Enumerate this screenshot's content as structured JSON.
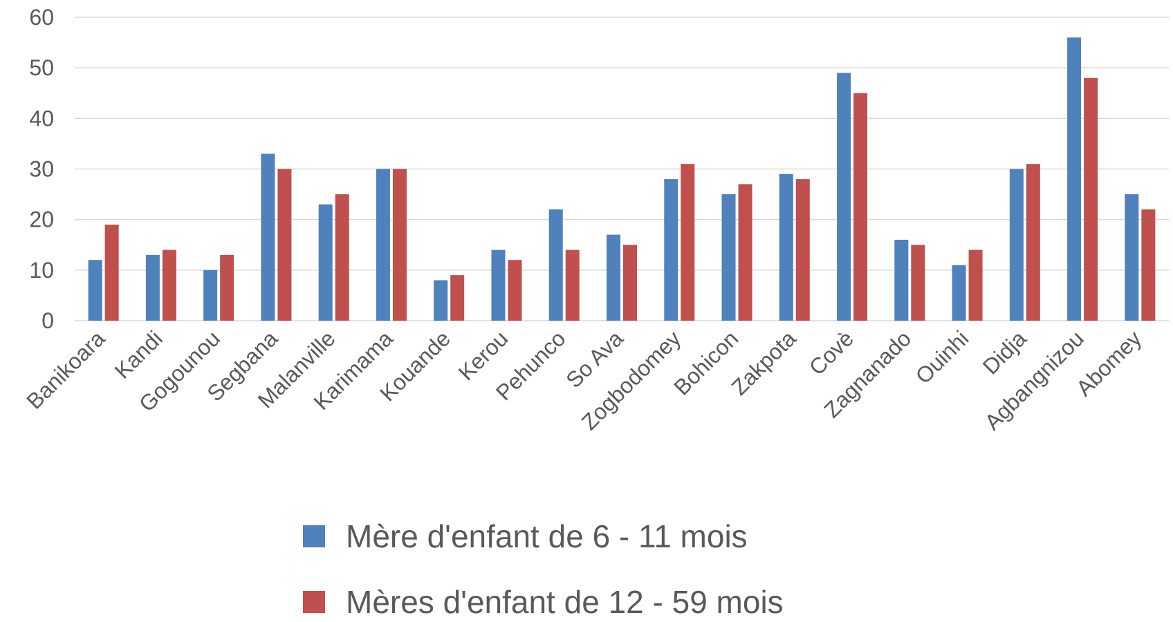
{
  "chart_data": {
    "type": "bar",
    "categories": [
      "Banikoara",
      "Kandi",
      "Gogounou",
      "Segbana",
      "Malanville",
      "Karimama",
      "Kouande",
      "Kerou",
      "Pehunco",
      "So Ava",
      "Zogbodomey",
      "Bohicon",
      "Zakpota",
      "Covè",
      "Zagnanado",
      "Ouinhi",
      "Didja",
      "Agbangnizou",
      "Abomey"
    ],
    "series": [
      {
        "name": "Mère d'enfant de 6 - 11 mois",
        "color": "#4f81bd",
        "values": [
          12,
          13,
          10,
          33,
          23,
          30,
          8,
          14,
          22,
          17,
          28,
          25,
          29,
          49,
          16,
          11,
          30,
          56,
          25
        ]
      },
      {
        "name": "Mères d'enfant de 12 - 59 mois",
        "color": "#c0504d",
        "values": [
          19,
          14,
          13,
          30,
          25,
          30,
          9,
          12,
          14,
          15,
          31,
          27,
          28,
          45,
          15,
          14,
          31,
          48,
          22
        ]
      }
    ],
    "ylim": [
      0,
      60
    ],
    "yticks": [
      0,
      10,
      20,
      30,
      40,
      50,
      60
    ],
    "grid": true,
    "legend": "bottom"
  }
}
